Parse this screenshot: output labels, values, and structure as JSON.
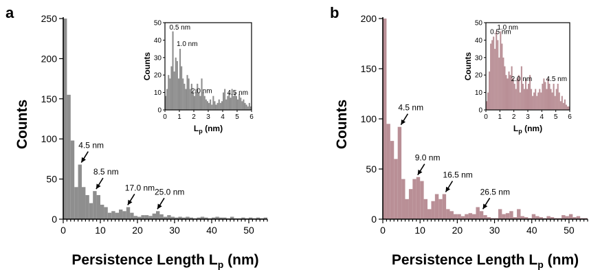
{
  "chart_data": [
    {
      "panel": "a",
      "type": "bar",
      "xlabel": "Persistence Length L",
      "xlabel_sub": "p",
      "xlabel_unit": " (nm)",
      "ylabel": "Counts",
      "xlim": [
        0,
        55
      ],
      "ylim": [
        0,
        250
      ],
      "xticks": [
        0,
        10,
        20,
        30,
        40,
        50
      ],
      "yticks": [
        0,
        50,
        100,
        150,
        200,
        250
      ],
      "bin_width": 1,
      "color": "#8e8e8e",
      "x": [
        0,
        1,
        2,
        3,
        4,
        5,
        6,
        7,
        8,
        9,
        10,
        11,
        12,
        13,
        14,
        15,
        16,
        17,
        18,
        19,
        20,
        21,
        22,
        23,
        24,
        25,
        26,
        27,
        28,
        29,
        30,
        31,
        32,
        33,
        34,
        35,
        36,
        37,
        38,
        39,
        40,
        41,
        42,
        43,
        44,
        45,
        46,
        47,
        48,
        49,
        50,
        51,
        52,
        53,
        54
      ],
      "values": [
        250,
        155,
        98,
        40,
        68,
        40,
        30,
        20,
        35,
        30,
        18,
        15,
        8,
        10,
        8,
        12,
        10,
        15,
        8,
        4,
        3,
        5,
        5,
        4,
        7,
        10,
        6,
        3,
        5,
        3,
        2,
        3,
        2,
        3,
        2,
        1,
        2,
        3,
        2,
        1,
        2,
        3,
        2,
        2,
        1,
        3,
        1,
        1,
        2,
        1,
        2,
        1,
        2,
        1,
        2
      ],
      "annotations": [
        {
          "text": "4.5 nm",
          "x": 4.5
        },
        {
          "text": "8.5 nm",
          "x": 8.5
        },
        {
          "text": "17.0 nm",
          "x": 17.0
        },
        {
          "text": "25.0 nm",
          "x": 25.0
        }
      ],
      "inset": {
        "xlabel": "L",
        "xlabel_sub": "p",
        "xlabel_unit": " (nm)",
        "ylabel": "Counts",
        "xlim": [
          0,
          6
        ],
        "ylim": [
          0,
          50
        ],
        "xticks": [
          0,
          1,
          2,
          3,
          4,
          5,
          6
        ],
        "yticks": [
          0,
          10,
          20,
          30,
          40,
          50
        ],
        "bin_width": 0.1,
        "values": [
          8,
          12,
          20,
          18,
          25,
          45,
          22,
          30,
          28,
          18,
          35,
          25,
          18,
          15,
          12,
          20,
          18,
          12,
          15,
          10,
          8,
          12,
          15,
          10,
          8,
          18,
          10,
          8,
          6,
          5,
          4,
          6,
          3,
          8,
          5,
          3,
          4,
          6,
          4,
          5,
          10,
          12,
          6,
          8,
          10,
          7,
          12,
          8,
          10,
          8,
          6,
          9,
          7,
          5,
          6,
          4,
          3,
          2,
          4,
          2
        ],
        "annotations": [
          {
            "text": "0.5 nm",
            "x": 0.5
          },
          {
            "text": "1.0 nm",
            "x": 1.0
          },
          {
            "text": "2.0 nm",
            "x": 2.0
          },
          {
            "text": "4.5 nm",
            "x": 4.5
          }
        ]
      }
    },
    {
      "panel": "b",
      "type": "bar",
      "xlabel": "Persistence Length L",
      "xlabel_sub": "p",
      "xlabel_unit": " (nm)",
      "ylabel": "Counts",
      "xlim": [
        0,
        55
      ],
      "ylim": [
        0,
        200
      ],
      "xticks": [
        0,
        10,
        20,
        30,
        40,
        50
      ],
      "yticks": [
        0,
        50,
        100,
        150,
        200
      ],
      "bin_width": 1,
      "color": "#b98f96",
      "x": [
        0,
        1,
        2,
        3,
        4,
        5,
        6,
        7,
        8,
        9,
        10,
        11,
        12,
        13,
        14,
        15,
        16,
        17,
        18,
        19,
        20,
        21,
        22,
        23,
        24,
        25,
        26,
        27,
        28,
        29,
        30,
        31,
        32,
        33,
        34,
        35,
        36,
        37,
        38,
        39,
        40,
        41,
        42,
        43,
        44,
        45,
        46,
        47,
        48,
        49,
        50,
        51,
        52,
        53,
        54
      ],
      "values": [
        205,
        95,
        78,
        60,
        92,
        40,
        20,
        30,
        40,
        42,
        38,
        20,
        10,
        18,
        25,
        20,
        25,
        10,
        8,
        5,
        5,
        3,
        5,
        6,
        5,
        12,
        8,
        4,
        2,
        1,
        1,
        10,
        5,
        6,
        8,
        2,
        10,
        3,
        2,
        1,
        5,
        3,
        2,
        1,
        3,
        2,
        1,
        1,
        4,
        3,
        5,
        2,
        3,
        1,
        1
      ],
      "annotations": [
        {
          "text": "4.5 nm",
          "x": 4.5
        },
        {
          "text": "9.0 nm",
          "x": 9.0
        },
        {
          "text": "16.5 nm",
          "x": 16.5
        },
        {
          "text": "26.5 nm",
          "x": 26.5
        }
      ],
      "inset": {
        "xlabel": "L",
        "xlabel_sub": "p",
        "xlabel_unit": " (nm)",
        "ylabel": "Counts",
        "xlim": [
          0,
          6
        ],
        "ylim": [
          0,
          50
        ],
        "xticks": [
          0,
          1,
          2,
          3,
          4,
          5,
          6
        ],
        "yticks": [
          0,
          10,
          20,
          30,
          40,
          50
        ],
        "bin_width": 0.1,
        "values": [
          5,
          10,
          22,
          38,
          40,
          42,
          35,
          45,
          40,
          30,
          45,
          38,
          30,
          25,
          20,
          18,
          22,
          20,
          25,
          18,
          15,
          12,
          18,
          20,
          10,
          25,
          15,
          12,
          18,
          12,
          15,
          20,
          12,
          8,
          10,
          12,
          8,
          10,
          12,
          10,
          15,
          18,
          16,
          12,
          18,
          15,
          12,
          10,
          15,
          8,
          12,
          15,
          10,
          5,
          8,
          4,
          6,
          3,
          2,
          2
        ],
        "annotations": [
          {
            "text": "0.5 nm",
            "x": 0.5
          },
          {
            "text": "1.0 nm",
            "x": 1.0
          },
          {
            "text": "2.0 nm",
            "x": 2.0
          },
          {
            "text": "4.5 nm",
            "x": 4.5
          }
        ]
      }
    }
  ]
}
